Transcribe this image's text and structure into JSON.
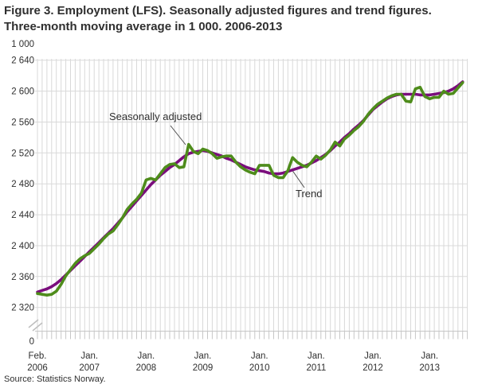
{
  "title": {
    "line1": "Figure 3. Employment (LFS). Seasonally adjusted figures and trend figures.",
    "line2": "Three-month moving average in 1 000. 2006-2013"
  },
  "source": "Source: Statistics Norway.",
  "annotations": {
    "seasonally_adjusted": "Seasonally adjusted",
    "trend": "Trend"
  },
  "y_axis": {
    "unit_label": "1 000",
    "tick_labels": [
      {
        "label": "2 640",
        "value": 2640
      },
      {
        "label": "2 600",
        "value": 2600
      },
      {
        "label": "2 560",
        "value": 2560
      },
      {
        "label": "2 520",
        "value": 2520
      },
      {
        "label": "2 480",
        "value": 2480
      },
      {
        "label": "2 440",
        "value": 2440
      },
      {
        "label": "2 400",
        "value": 2400
      },
      {
        "label": "2 360",
        "value": 2360
      },
      {
        "label": "2 320",
        "value": 2320
      }
    ],
    "zero_label": "0",
    "axis_break": true
  },
  "x_axis": {
    "tick_labels": [
      {
        "month": "Feb.",
        "year": "2006",
        "month_index": 0
      },
      {
        "month": "Jan.",
        "year": "2007",
        "month_index": 11
      },
      {
        "month": "Jan.",
        "year": "2008",
        "month_index": 23
      },
      {
        "month": "Jan.",
        "year": "2009",
        "month_index": 35
      },
      {
        "month": "Jan.",
        "year": "2010",
        "month_index": 47
      },
      {
        "month": "Jan.",
        "year": "2011",
        "month_index": 59
      },
      {
        "month": "Jan.",
        "year": "2012",
        "month_index": 71
      },
      {
        "month": "Jan.",
        "year": "2013",
        "month_index": 83
      }
    ]
  },
  "colors": {
    "seasonally_adjusted": "#4e8c1b",
    "trend": "#7a0d7c",
    "grid": "#d9d9d9",
    "axis": "#c6c6c6",
    "text": "#2f2f2f",
    "leader": "#4d4d4d"
  },
  "chart_data": {
    "type": "line",
    "title": "Figure 3. Employment (LFS). Seasonally adjusted figures and trend figures. Three-month moving average in 1 000. 2006-2013",
    "ylabel": "1 000",
    "frequency": "monthly",
    "x_start": "2006-02",
    "x_end": "2013-08",
    "ylim_display": [
      2320,
      2640
    ],
    "y_tick_step": 40,
    "y_break_to_zero": true,
    "grid": true,
    "legend": "inline-annotations",
    "series": [
      {
        "name": "Seasonally adjusted",
        "color": "#4e8c1b",
        "values": [
          2338,
          2337,
          2336,
          2337,
          2341,
          2350,
          2361,
          2369,
          2377,
          2383,
          2387,
          2390,
          2396,
          2402,
          2409,
          2415,
          2419,
          2427,
          2436,
          2447,
          2454,
          2460,
          2468,
          2485,
          2487,
          2485,
          2493,
          2501,
          2505,
          2506,
          2501,
          2502,
          2531,
          2522,
          2519,
          2525,
          2523,
          2519,
          2513,
          2515,
          2516,
          2516,
          2508,
          2502,
          2498,
          2495,
          2493,
          2504,
          2504,
          2504,
          2491,
          2488,
          2488,
          2497,
          2514,
          2508,
          2504,
          2502,
          2508,
          2516,
          2512,
          2517,
          2524,
          2534,
          2529,
          2538,
          2543,
          2549,
          2554,
          2561,
          2570,
          2577,
          2583,
          2587,
          2591,
          2594,
          2596,
          2596,
          2587,
          2586,
          2603,
          2605,
          2593,
          2590,
          2592,
          2592,
          2600,
          2596,
          2597,
          2604,
          2611
        ]
      },
      {
        "name": "Trend",
        "color": "#7a0d7c",
        "values": [
          2340,
          2342,
          2344,
          2347,
          2351,
          2356,
          2362,
          2368,
          2374,
          2380,
          2386,
          2392,
          2398,
          2404,
          2410,
          2416,
          2422,
          2429,
          2436,
          2444,
          2451,
          2458,
          2465,
          2472,
          2479,
          2485,
          2491,
          2496,
          2501,
          2505,
          2510,
          2515,
          2519,
          2521,
          2522,
          2523,
          2522,
          2520,
          2518,
          2516,
          2513,
          2511,
          2508,
          2505,
          2502,
          2500,
          2498,
          2497,
          2496,
          2494,
          2493,
          2493,
          2494,
          2496,
          2498,
          2500,
          2502,
          2504,
          2507,
          2510,
          2514,
          2518,
          2523,
          2529,
          2534,
          2540,
          2545,
          2551,
          2556,
          2562,
          2569,
          2576,
          2581,
          2586,
          2590,
          2593,
          2595,
          2596,
          2596,
          2596,
          2596,
          2595,
          2595,
          2595,
          2596,
          2597,
          2598,
          2600,
          2603,
          2607,
          2612
        ]
      }
    ]
  }
}
